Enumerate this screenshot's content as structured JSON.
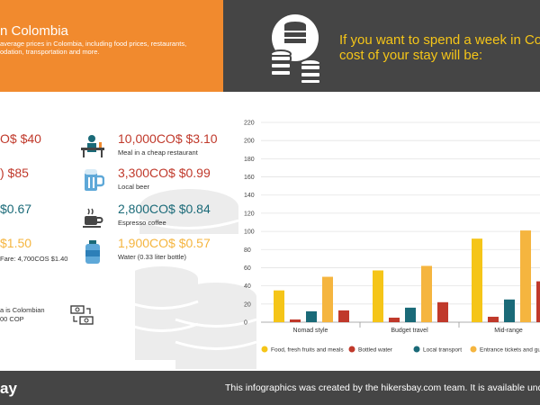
{
  "header": {
    "title": "n Colombia",
    "subtitle_line1": "average prices in Colombia, including food prices, restaurants,",
    "subtitle_line2": "odation, transportation and more.",
    "question_line1": "If you want to spend a week in Co",
    "question_line2": "cost of your stay will be:"
  },
  "left_prices": [
    {
      "text": "O$ $40",
      "color": "red"
    },
    {
      "text": ") $85",
      "color": "red"
    },
    {
      "text": "$0.67",
      "color": "teal"
    },
    {
      "text": "$1.50",
      "color": "yel"
    }
  ],
  "left_small": {
    "fare": "Fare: 4,700COS $1.40",
    "currency_line1": "a is Colombian",
    "currency_line2": "00 COP"
  },
  "prices": [
    {
      "value": "10,000CO$ $3.10",
      "label": "Meal in a cheap restaurant",
      "color": "#c0392b",
      "icon": "restaurant-icon"
    },
    {
      "value": "3,300CO$ $0.99",
      "label": "Local beer",
      "color": "#c0392b",
      "icon": "beer-icon"
    },
    {
      "value": "2,800CO$ $0.84",
      "label": "Espresso coffee",
      "color": "#1a6a78",
      "icon": "coffee-icon"
    },
    {
      "value": "1,900CO$ $0.57",
      "label": "Water (0.33 liter bottle)",
      "color": "#f5b53f",
      "icon": "water-bottle-icon"
    }
  ],
  "footer": {
    "brand": "ay",
    "credit": "This infographics was created by the hikersbay.com team. It is available under"
  },
  "colors": {
    "orange": "#f18a2e",
    "dark": "#454545",
    "yellow": "#f5c518",
    "red": "#c0392b",
    "teal": "#1a6a78",
    "gold": "#f5b53f"
  },
  "chart_data": {
    "type": "bar",
    "categories": [
      "Nomad style",
      "Budget travel",
      "Mid-range"
    ],
    "yticks": [
      0,
      20,
      40,
      60,
      80,
      100,
      120,
      140,
      160,
      180,
      200,
      220
    ],
    "ylim": [
      0,
      220
    ],
    "series": [
      {
        "name": "Food, fresh fruits and meals",
        "color": "#f5c518",
        "values": [
          35,
          57,
          92
        ]
      },
      {
        "name": "Bottled water",
        "color": "#c0392b",
        "values": [
          3,
          5,
          6
        ]
      },
      {
        "name": "Local transport",
        "color": "#1a6a78",
        "values": [
          12,
          16,
          25
        ]
      },
      {
        "name": "Entrance tickets and guide s",
        "color": "#f5b53f",
        "values": [
          50,
          62,
          101
        ]
      },
      {
        "name": "",
        "color": "#c0392b",
        "values": [
          13,
          22,
          45
        ]
      }
    ],
    "legend_position": "bottom",
    "grid": true
  }
}
